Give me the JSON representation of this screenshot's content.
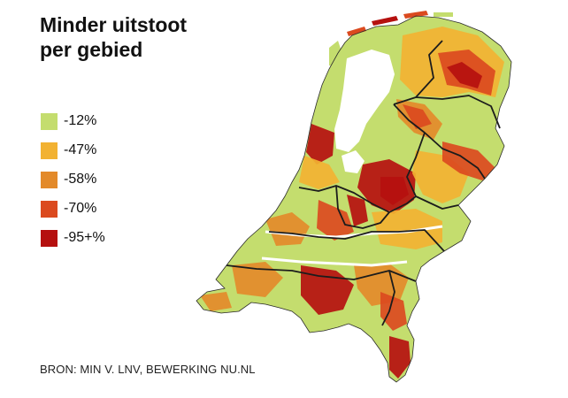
{
  "title_line1": "Minder uitstoot",
  "title_line2": "per gebied",
  "legend": [
    {
      "label": "-12%",
      "color": "#c4dd6e"
    },
    {
      "label": "-47%",
      "color": "#f2b232"
    },
    {
      "label": "-58%",
      "color": "#e38a2a"
    },
    {
      "label": "-70%",
      "color": "#db4a1f"
    },
    {
      "label": "-95+%",
      "color": "#b5100f"
    }
  ],
  "source": "BRON: MIN V. LNV, BEWERKING NU.NL",
  "map": {
    "country": "Netherlands",
    "boundary_color": "#1c1c1c",
    "water_color": "#ffffff"
  }
}
